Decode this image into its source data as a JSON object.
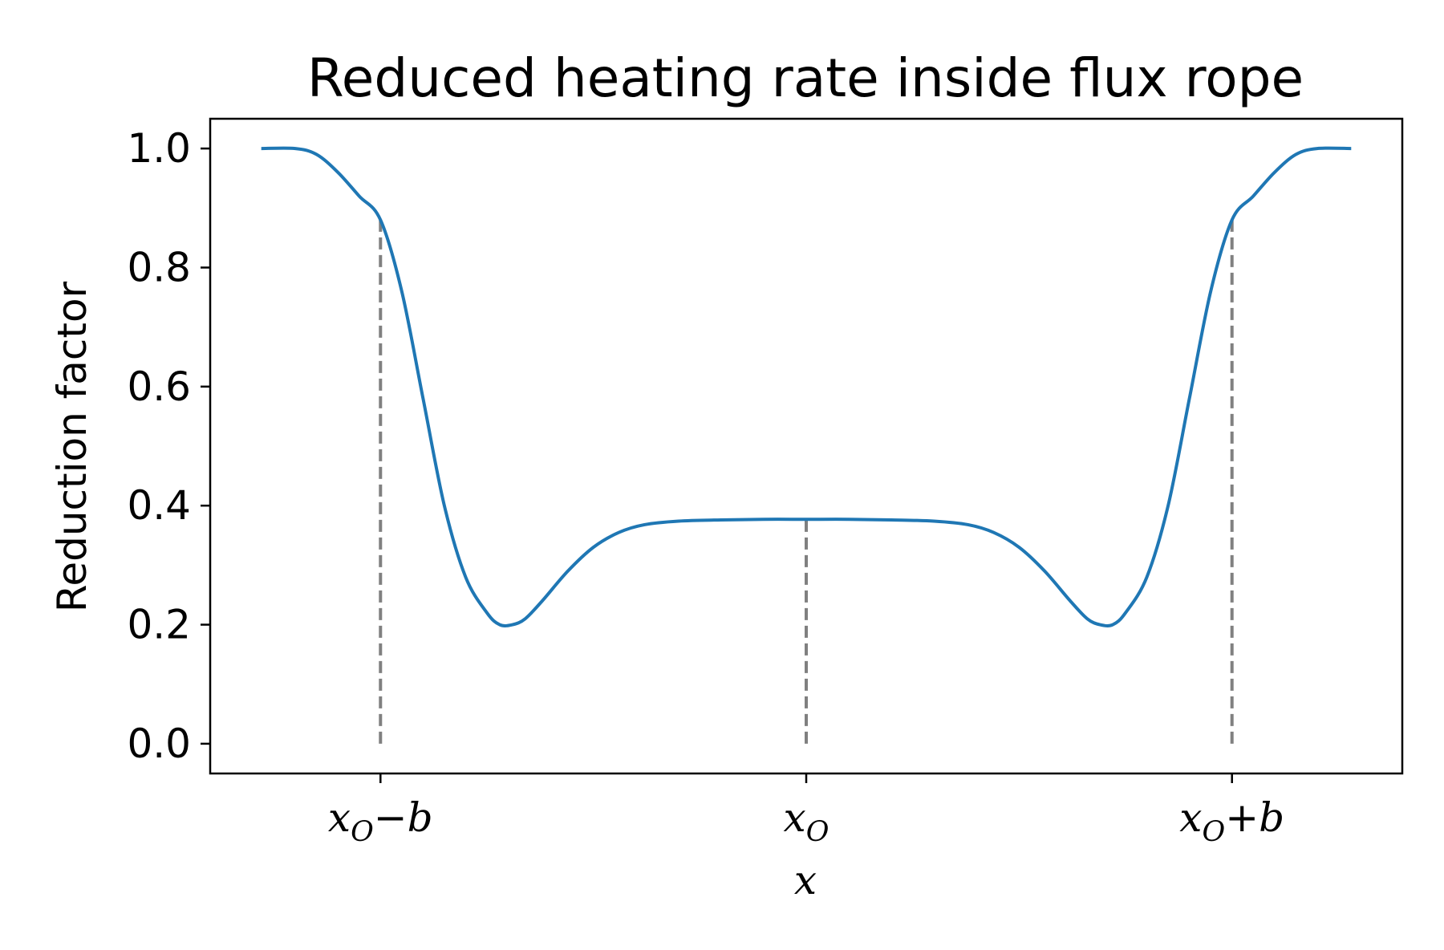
{
  "chart_data": {
    "type": "line",
    "title": "Reduced heating rate inside flux rope",
    "xlabel": "x",
    "ylabel": "Reduction factor",
    "ylim": [
      -0.05,
      1.05
    ],
    "xlim": [
      -1.4,
      1.4
    ],
    "yticks": [
      {
        "value": 0.0,
        "label": "0.0"
      },
      {
        "value": 0.2,
        "label": "0.2"
      },
      {
        "value": 0.4,
        "label": "0.4"
      },
      {
        "value": 0.6,
        "label": "0.6"
      },
      {
        "value": 0.8,
        "label": "0.8"
      },
      {
        "value": 1.0,
        "label": "1.0"
      }
    ],
    "xticks": [
      {
        "value": -1,
        "base": "x",
        "sub": "O",
        "op": "−",
        "suffix": "b"
      },
      {
        "value": 0,
        "base": "x",
        "sub": "O",
        "op": "",
        "suffix": ""
      },
      {
        "value": 1,
        "base": "x",
        "sub": "O",
        "op": "+",
        "suffix": "b"
      }
    ],
    "grid": false,
    "series": [
      {
        "color": "#1f77b4",
        "x": [
          -1.28,
          -1.2,
          -1.15,
          -1.1,
          -1.05,
          -1.0,
          -0.95,
          -0.9,
          -0.85,
          -0.8,
          -0.75,
          -0.72,
          -0.69,
          -0.66,
          -0.62,
          -0.56,
          -0.5,
          -0.44,
          -0.38,
          -0.3,
          -0.2,
          -0.1,
          0.0,
          0.1,
          0.2,
          0.3,
          0.38,
          0.44,
          0.5,
          0.56,
          0.62,
          0.66,
          0.69,
          0.72,
          0.75,
          0.8,
          0.85,
          0.9,
          0.95,
          1.0,
          1.05,
          1.1,
          1.15,
          1.2,
          1.28
        ],
        "y": [
          1.0,
          1.0,
          0.99,
          0.96,
          0.92,
          0.88,
          0.76,
          0.58,
          0.4,
          0.28,
          0.22,
          0.2,
          0.2,
          0.21,
          0.24,
          0.29,
          0.33,
          0.355,
          0.368,
          0.374,
          0.376,
          0.377,
          0.377,
          0.377,
          0.376,
          0.374,
          0.368,
          0.355,
          0.33,
          0.29,
          0.24,
          0.21,
          0.2,
          0.2,
          0.22,
          0.28,
          0.4,
          0.58,
          0.76,
          0.88,
          0.92,
          0.96,
          0.99,
          1.0,
          1.0
        ]
      }
    ],
    "reference_lines": {
      "color": "#808080",
      "style": "dashed",
      "lines": [
        {
          "x": -1,
          "y_top": 0.88
        },
        {
          "x": 0,
          "y_top": 0.377
        },
        {
          "x": 1,
          "y_top": 0.88
        }
      ]
    }
  }
}
